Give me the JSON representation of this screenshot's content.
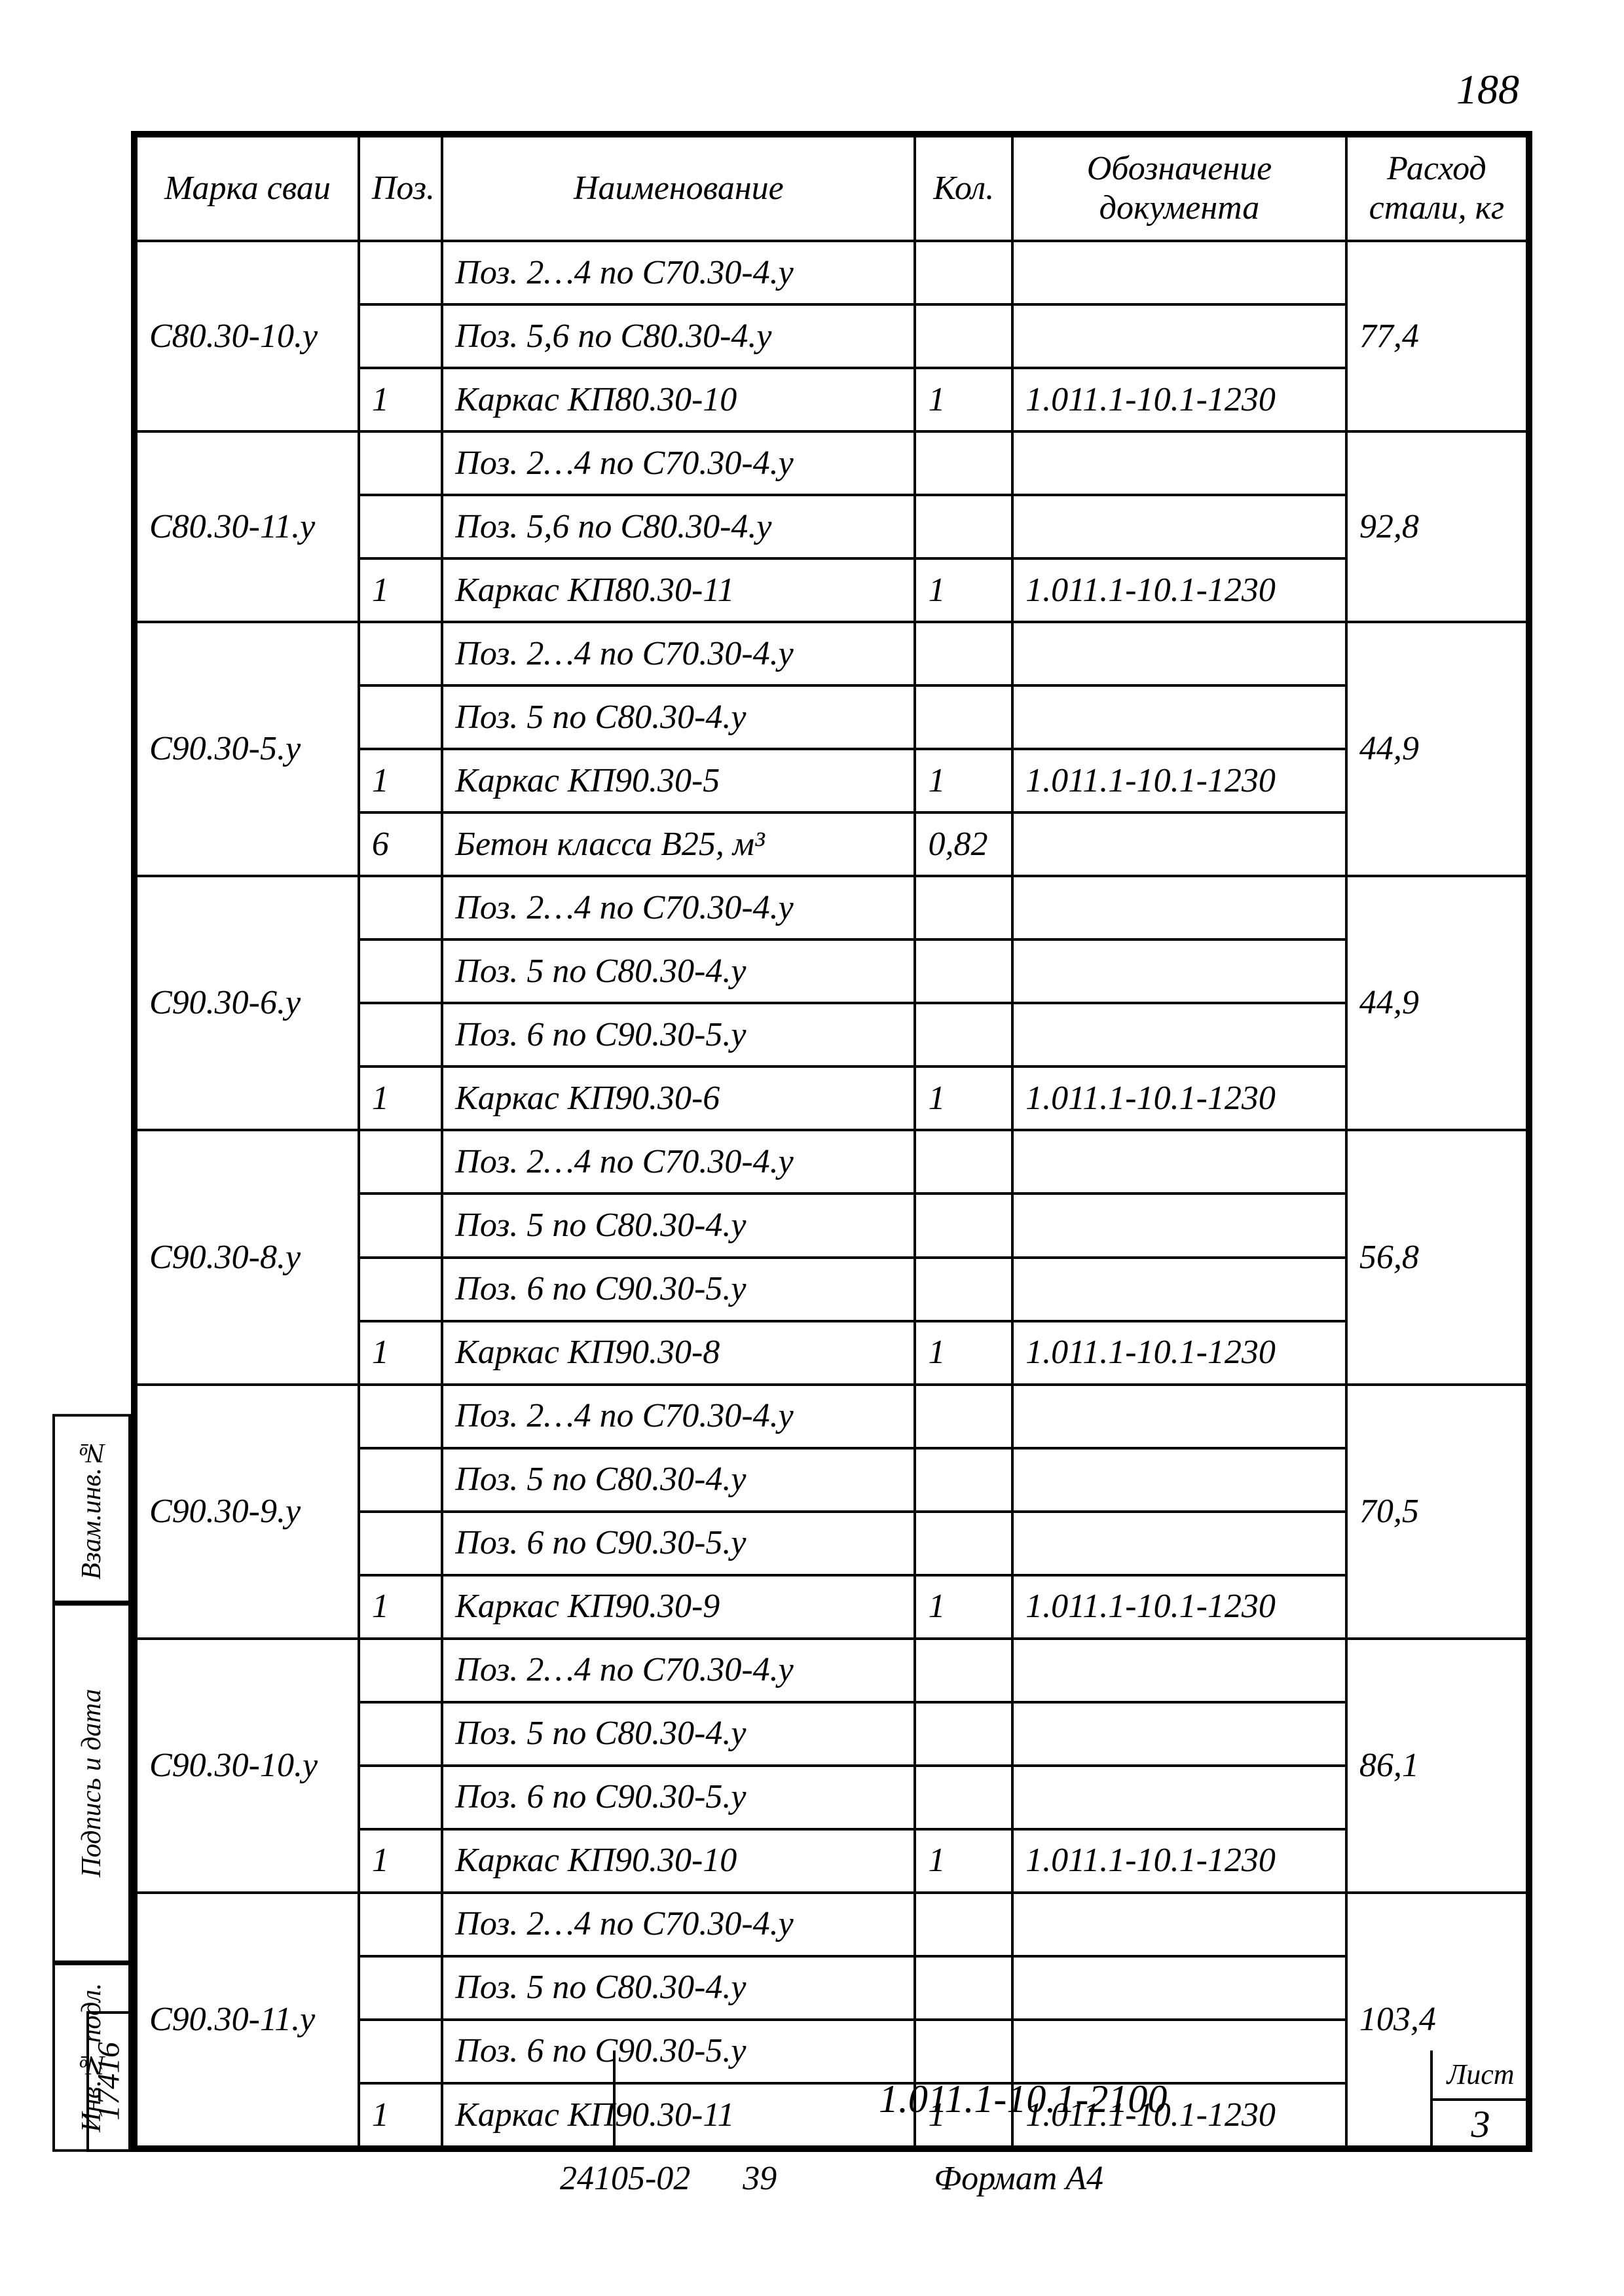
{
  "page_number": "188",
  "headers": {
    "mark": "Марка сваи",
    "pos": "Поз.",
    "name": "Наименование",
    "qty": "Кол.",
    "doc": "Обозначение документа",
    "steel": "Расход стали, кг"
  },
  "groups": [
    {
      "mark": "С80.30-10.у",
      "steel": "77,4",
      "rows": [
        {
          "pos": "",
          "name": "Поз. 2…4 по С70.30-4.у",
          "qty": "",
          "doc": ""
        },
        {
          "pos": "",
          "name": "Поз. 5,6 по С80.30-4.у",
          "qty": "",
          "doc": ""
        },
        {
          "pos": "1",
          "name": "Каркас КП80.30-10",
          "qty": "1",
          "doc": "1.011.1-10.1-1230"
        }
      ]
    },
    {
      "mark": "С80.30-11.у",
      "steel": "92,8",
      "rows": [
        {
          "pos": "",
          "name": "Поз. 2…4 по С70.30-4.у",
          "qty": "",
          "doc": ""
        },
        {
          "pos": "",
          "name": "Поз. 5,6 по С80.30-4.у",
          "qty": "",
          "doc": ""
        },
        {
          "pos": "1",
          "name": "Каркас КП80.30-11",
          "qty": "1",
          "doc": "1.011.1-10.1-1230"
        }
      ]
    },
    {
      "mark": "С90.30-5.у",
      "steel": "44,9",
      "rows": [
        {
          "pos": "",
          "name": "Поз. 2…4 по С70.30-4.у",
          "qty": "",
          "doc": ""
        },
        {
          "pos": "",
          "name": "Поз. 5 по С80.30-4.у",
          "qty": "",
          "doc": ""
        },
        {
          "pos": "1",
          "name": "Каркас КП90.30-5",
          "qty": "1",
          "doc": "1.011.1-10.1-1230"
        },
        {
          "pos": "6",
          "name": "Бетон класса В25, м³",
          "qty": "0,82",
          "doc": ""
        }
      ]
    },
    {
      "mark": "С90.30-6.у",
      "steel": "44,9",
      "rows": [
        {
          "pos": "",
          "name": "Поз. 2…4 по С70.30-4.у",
          "qty": "",
          "doc": ""
        },
        {
          "pos": "",
          "name": "Поз. 5 по С80.30-4.у",
          "qty": "",
          "doc": ""
        },
        {
          "pos": "",
          "name": "Поз. 6 по С90.30-5.у",
          "qty": "",
          "doc": ""
        },
        {
          "pos": "1",
          "name": "Каркас КП90.30-6",
          "qty": "1",
          "doc": "1.011.1-10.1-1230"
        }
      ]
    },
    {
      "mark": "С90.30-8.у",
      "steel": "56,8",
      "rows": [
        {
          "pos": "",
          "name": "Поз. 2…4 по С70.30-4.у",
          "qty": "",
          "doc": ""
        },
        {
          "pos": "",
          "name": "Поз. 5 по С80.30-4.у",
          "qty": "",
          "doc": ""
        },
        {
          "pos": "",
          "name": "Поз. 6 по С90.30-5.у",
          "qty": "",
          "doc": ""
        },
        {
          "pos": "1",
          "name": "Каркас КП90.30-8",
          "qty": "1",
          "doc": "1.011.1-10.1-1230"
        }
      ]
    },
    {
      "mark": "С90.30-9.у",
      "steel": "70,5",
      "rows": [
        {
          "pos": "",
          "name": "Поз. 2…4 по С70.30-4.у",
          "qty": "",
          "doc": ""
        },
        {
          "pos": "",
          "name": "Поз. 5 по С80.30-4.у",
          "qty": "",
          "doc": ""
        },
        {
          "pos": "",
          "name": "Поз. 6 по С90.30-5.у",
          "qty": "",
          "doc": ""
        },
        {
          "pos": "1",
          "name": "Каркас КП90.30-9",
          "qty": "1",
          "doc": "1.011.1-10.1-1230"
        }
      ]
    },
    {
      "mark": "С90.30-10.у",
      "steel": "86,1",
      "rows": [
        {
          "pos": "",
          "name": "Поз. 2…4 по С70.30-4.у",
          "qty": "",
          "doc": ""
        },
        {
          "pos": "",
          "name": "Поз. 5 по С80.30-4.у",
          "qty": "",
          "doc": ""
        },
        {
          "pos": "",
          "name": "Поз. 6 по С90.30-5.у",
          "qty": "",
          "doc": ""
        },
        {
          "pos": "1",
          "name": "Каркас КП90.30-10",
          "qty": "1",
          "doc": "1.011.1-10.1-1230"
        }
      ]
    },
    {
      "mark": "С90.30-11.у",
      "steel": "103,4",
      "rows": [
        {
          "pos": "",
          "name": "Поз. 2…4 по С70.30-4.у",
          "qty": "",
          "doc": ""
        },
        {
          "pos": "",
          "name": "Поз. 5 по С80.30-4.у",
          "qty": "",
          "doc": ""
        },
        {
          "pos": "",
          "name": "Поз. 6 по С90.30-5.у",
          "qty": "",
          "doc": ""
        },
        {
          "pos": "1",
          "name": "Каркас КП90.30-11",
          "qty": "1",
          "doc": "1.011.1-10.1-1230"
        }
      ]
    }
  ],
  "footer": {
    "drawing_no": "1.011.1-10.1-2100",
    "sheet_label": "Лист",
    "sheet_no": "3"
  },
  "bottom": {
    "code": "24105-02",
    "num": "39",
    "format": "Формат А4"
  },
  "side": {
    "a": "Взам.инв.№",
    "b": "Подпись и дата",
    "c": "Инв.№ подл.",
    "inv": "17416"
  }
}
